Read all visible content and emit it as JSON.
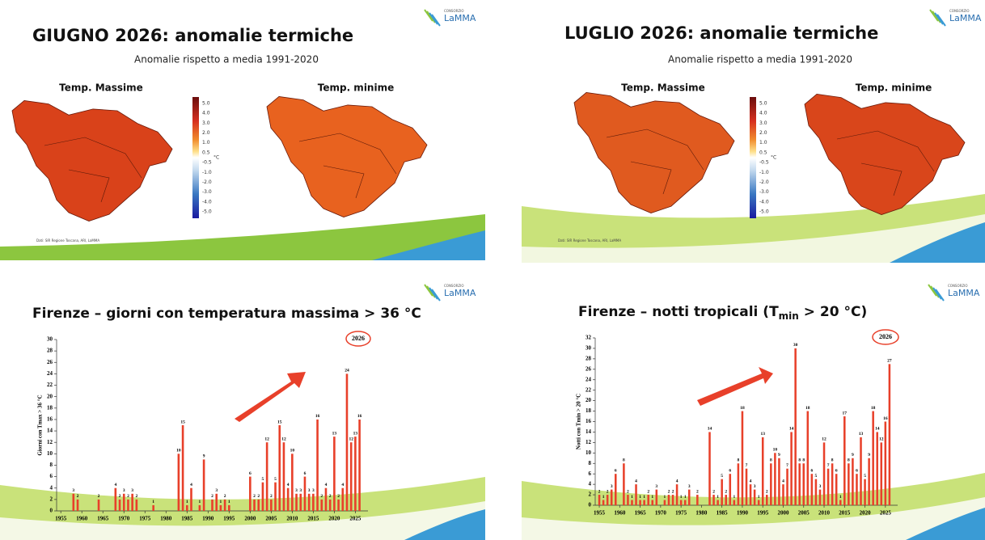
{
  "slides": [
    {
      "title": "GIUGNO 2026: anomalie termiche",
      "subtitle": "Anomalie rispetto a media 1991-2020",
      "maps": [
        "Temp. Massime",
        "Temp. minime"
      ],
      "legend_unit": "°C",
      "legend": [
        "5.0",
        "4.0",
        "3.0",
        "2.0",
        "1.0",
        "0.5",
        "-0.5",
        "-1.0",
        "-2.0",
        "-3.0",
        "-4.0",
        "-5.0"
      ],
      "logo_small": "CONSORZIO",
      "logo": "LaMMA",
      "source": "Dati: SIR Regione Toscana, ARI, LaMMA"
    },
    {
      "title": "LUGLIO 2026: anomalie termiche",
      "subtitle": "Anomalie rispetto a media 1991-2020",
      "maps": [
        "Temp. Massime",
        "Temp. minime"
      ],
      "legend_unit": "°C",
      "legend": [
        "5.0",
        "4.0",
        "3.0",
        "2.0",
        "1.0",
        "0.5",
        "-0.5",
        "-1.0",
        "-2.0",
        "-3.0",
        "-4.0",
        "-5.0"
      ],
      "logo_small": "CONSORZIO",
      "logo": "LaMMA",
      "source": "Dati: SIR Regione Toscana, ARI, LaMMA"
    }
  ],
  "chart_data": [
    {
      "type": "bar",
      "title": "Firenze – giorni con temperatura massima > 36 °C",
      "ylabel": "Giorni con Tmax > 36 °C",
      "annotation": "2026",
      "logo_small": "CONSORZIO",
      "logo": "LaMMA",
      "color": "#e8402a",
      "x": [
        1958,
        1959,
        1964,
        1968,
        1969,
        1970,
        1971,
        1972,
        1973,
        1977,
        1983,
        1984,
        1985,
        1986,
        1988,
        1989,
        1991,
        1992,
        1993,
        1994,
        1995,
        2000,
        2001,
        2002,
        2003,
        2004,
        2005,
        2006,
        2007,
        2008,
        2009,
        2010,
        2011,
        2012,
        2013,
        2014,
        2015,
        2016,
        2017,
        2018,
        2019,
        2020,
        2021,
        2022,
        2023,
        2024,
        2025,
        2026
      ],
      "values": [
        3,
        2,
        2,
        4,
        2,
        3,
        2,
        3,
        2,
        1,
        10,
        15,
        1,
        4,
        1,
        9,
        2,
        3,
        1,
        2,
        1,
        6,
        2,
        2,
        5,
        12,
        2,
        5,
        15,
        12,
        4,
        10,
        3,
        3,
        6,
        3,
        3,
        16,
        2,
        4,
        2,
        13,
        2,
        4,
        24,
        12,
        13,
        16
      ],
      "xlim": [
        1954,
        2028
      ],
      "xticks": [
        1955,
        1960,
        1965,
        1970,
        1975,
        1980,
        1985,
        1990,
        1995,
        2000,
        2005,
        2010,
        2015,
        2020,
        2025
      ],
      "ylim": [
        0,
        30
      ],
      "yticks": [
        0,
        2,
        4,
        6,
        8,
        10,
        12,
        14,
        16,
        18,
        20,
        22,
        24,
        26,
        28,
        30
      ]
    },
    {
      "type": "bar",
      "title": "Firenze – notti tropicali (T",
      "title_sub": "min",
      "title_end": " > 20 °C)",
      "ylabel": "Notti con Tmin > 20 °C",
      "annotation": "2026",
      "logo_small": "CONSORZIO",
      "logo": "LaMMA",
      "color": "#e8402a",
      "x": [
        1955,
        1956,
        1957,
        1958,
        1959,
        1961,
        1962,
        1963,
        1964,
        1965,
        1966,
        1967,
        1968,
        1969,
        1971,
        1972,
        1973,
        1974,
        1975,
        1976,
        1977,
        1979,
        1982,
        1983,
        1984,
        1985,
        1986,
        1987,
        1988,
        1989,
        1990,
        1991,
        1992,
        1993,
        1994,
        1995,
        1996,
        1997,
        1998,
        1999,
        2000,
        2001,
        2002,
        2003,
        2004,
        2005,
        2006,
        2007,
        2008,
        2009,
        2010,
        2011,
        2012,
        2013,
        2014,
        2015,
        2016,
        2017,
        2018,
        2019,
        2020,
        2021,
        2022,
        2023,
        2024,
        2025,
        2026
      ],
      "values": [
        2,
        1,
        2,
        3,
        6,
        8,
        2,
        1,
        4,
        1,
        1,
        2,
        1,
        3,
        1,
        2,
        2,
        4,
        1,
        1,
        3,
        2,
        14,
        2,
        1,
        5,
        2,
        6,
        1,
        8,
        18,
        7,
        4,
        3,
        1,
        13,
        2,
        8,
        10,
        9,
        4,
        7,
        14,
        30,
        8,
        8,
        18,
        6,
        5,
        3,
        12,
        7,
        8,
        6,
        1,
        17,
        8,
        9,
        6,
        13,
        5,
        9,
        18,
        14,
        12,
        16,
        27
      ],
      "xlim": [
        1954,
        2028
      ],
      "xticks": [
        1955,
        1960,
        1965,
        1970,
        1975,
        1980,
        1985,
        1990,
        1995,
        2000,
        2005,
        2010,
        2015,
        2020,
        2025
      ],
      "ylim": [
        0,
        32
      ],
      "yticks": [
        0,
        2,
        4,
        6,
        8,
        10,
        12,
        14,
        16,
        18,
        20,
        22,
        24,
        26,
        28,
        30,
        32
      ]
    }
  ]
}
